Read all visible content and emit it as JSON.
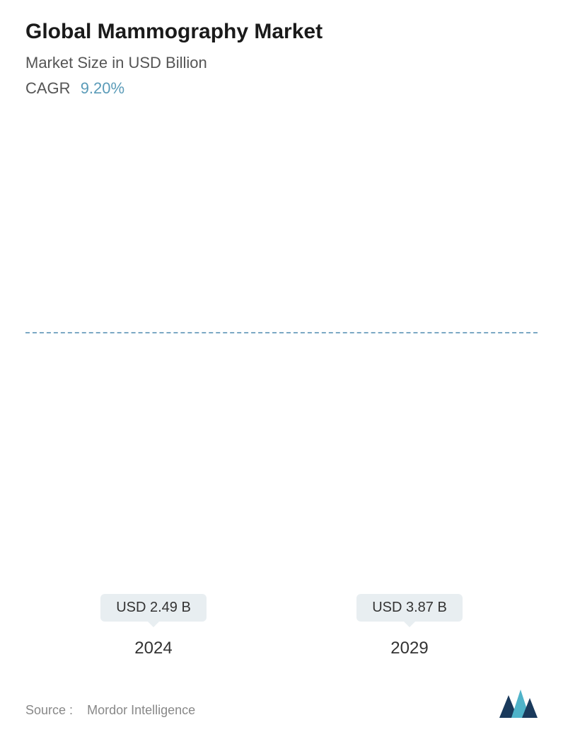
{
  "header": {
    "title": "Global Mammography Market",
    "subtitle": "Market Size in USD Billion",
    "cagr_label": "CAGR",
    "cagr_value": "9.20%"
  },
  "chart": {
    "type": "bar",
    "categories": [
      "2024",
      "2029"
    ],
    "values": [
      2.49,
      3.87
    ],
    "value_labels": [
      "USD 2.49 B",
      "USD 3.87 B"
    ],
    "bar_gradient_top": "#6b9ab5",
    "bar_gradient_mid": "#8ab8c8",
    "bar_gradient_bottom": "#b5d4d9",
    "badge_bg": "#e8eef1",
    "badge_text_color": "#333333",
    "dashed_line_color": "#7ba8c4",
    "dashed_line_at_value": 2.49,
    "ylim": [
      0,
      3.87
    ],
    "background_color": "#ffffff",
    "bar_width_pct": 78,
    "title_fontsize": 30,
    "subtitle_fontsize": 22,
    "label_fontsize": 24,
    "badge_fontsize": 20
  },
  "footer": {
    "source_label": "Source :",
    "source_name": "Mordor Intelligence",
    "logo_colors": {
      "dark": "#1a3a5c",
      "light": "#4fb3c9"
    }
  }
}
